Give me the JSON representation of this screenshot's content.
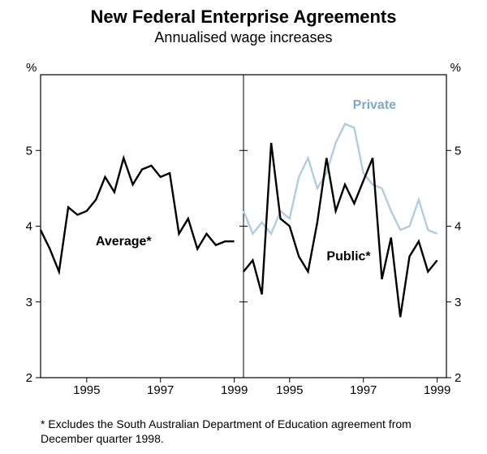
{
  "title": "New Federal Enterprise Agreements",
  "subtitle": "Annualised wage increases",
  "footnote": "* Excludes the South Australian Department of Education agreement from December quarter 1998.",
  "y_axis": {
    "label": "%",
    "lim": [
      2,
      6
    ],
    "ticks": [
      2,
      3,
      4,
      5
    ],
    "label_fontsize": 15
  },
  "panels": [
    {
      "x_ticks": [
        1995,
        1997,
        1999
      ],
      "x_start_year": 1993.75,
      "x_end_year": 1999.25,
      "series": [
        {
          "name": "Average*",
          "color": "#000000",
          "label_pos": {
            "x": 1996.0,
            "y": 3.75
          },
          "points": [
            [
              1993.75,
              3.95
            ],
            [
              1994.0,
              3.7
            ],
            [
              1994.25,
              3.4
            ],
            [
              1994.5,
              4.25
            ],
            [
              1994.75,
              4.15
            ],
            [
              1995.0,
              4.2
            ],
            [
              1995.25,
              4.35
            ],
            [
              1995.5,
              4.65
            ],
            [
              1995.75,
              4.45
            ],
            [
              1996.0,
              4.9
            ],
            [
              1996.25,
              4.55
            ],
            [
              1996.5,
              4.75
            ],
            [
              1996.75,
              4.8
            ],
            [
              1997.0,
              4.65
            ],
            [
              1997.25,
              4.7
            ],
            [
              1997.5,
              3.9
            ],
            [
              1997.75,
              4.1
            ],
            [
              1998.0,
              3.7
            ],
            [
              1998.25,
              3.9
            ],
            [
              1998.5,
              3.75
            ],
            [
              1998.75,
              3.8
            ],
            [
              1999.0,
              3.8
            ]
          ]
        }
      ]
    },
    {
      "x_ticks": [
        1995,
        1997,
        1999
      ],
      "x_start_year": 1993.75,
      "x_end_year": 1999.25,
      "series": [
        {
          "name": "Private",
          "color": "#aecde3",
          "label_pos": {
            "x": 1997.3,
            "y": 5.55
          },
          "points": [
            [
              1993.75,
              4.2
            ],
            [
              1994.0,
              3.9
            ],
            [
              1994.25,
              4.05
            ],
            [
              1994.5,
              3.9
            ],
            [
              1994.75,
              4.2
            ],
            [
              1995.0,
              4.1
            ],
            [
              1995.25,
              4.65
            ],
            [
              1995.5,
              4.9
            ],
            [
              1995.75,
              4.5
            ],
            [
              1996.0,
              4.7
            ],
            [
              1996.25,
              5.1
            ],
            [
              1996.5,
              5.35
            ],
            [
              1996.75,
              5.3
            ],
            [
              1997.0,
              4.7
            ],
            [
              1997.25,
              4.55
            ],
            [
              1997.5,
              4.5
            ],
            [
              1997.75,
              4.2
            ],
            [
              1998.0,
              3.95
            ],
            [
              1998.25,
              4.0
            ],
            [
              1998.5,
              4.35
            ],
            [
              1998.75,
              3.95
            ],
            [
              1999.0,
              3.9
            ]
          ]
        },
        {
          "name": "Public*",
          "color": "#000000",
          "label_pos": {
            "x": 1996.6,
            "y": 3.55
          },
          "points": [
            [
              1993.75,
              3.4
            ],
            [
              1994.0,
              3.55
            ],
            [
              1994.25,
              3.1
            ],
            [
              1994.5,
              5.1
            ],
            [
              1994.75,
              4.1
            ],
            [
              1995.0,
              4.0
            ],
            [
              1995.25,
              3.6
            ],
            [
              1995.5,
              3.4
            ],
            [
              1995.75,
              4.05
            ],
            [
              1996.0,
              4.9
            ],
            [
              1996.25,
              4.2
            ],
            [
              1996.5,
              4.55
            ],
            [
              1996.75,
              4.3
            ],
            [
              1997.0,
              4.6
            ],
            [
              1997.25,
              4.9
            ],
            [
              1997.5,
              3.3
            ],
            [
              1997.75,
              3.85
            ],
            [
              1998.0,
              2.8
            ],
            [
              1998.25,
              3.6
            ],
            [
              1998.5,
              3.8
            ],
            [
              1998.75,
              3.4
            ],
            [
              1999.0,
              3.55
            ]
          ]
        }
      ]
    }
  ],
  "colors": {
    "background": "#ffffff",
    "axis": "#000000",
    "series_black": "#000000",
    "series_light": "#aecde3"
  },
  "title_fontsize": 22,
  "subtitle_fontsize": 18,
  "footnote_fontsize": 14
}
